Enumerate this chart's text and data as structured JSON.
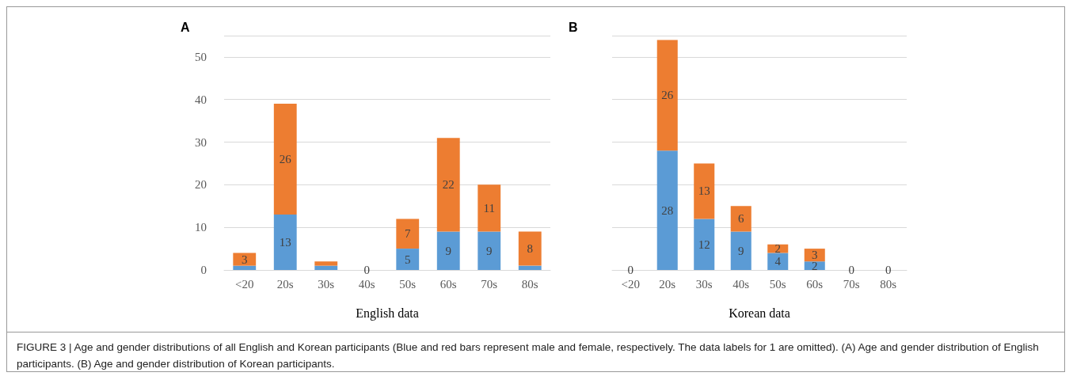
{
  "chart_data": [
    {
      "type": "bar",
      "title": "A",
      "xlabel": "English data",
      "categories": [
        "<20",
        "20s",
        "30s",
        "40s",
        "50s",
        "60s",
        "70s",
        "80s"
      ],
      "stacked": true,
      "ylim": [
        0,
        55
      ],
      "yticks": [
        0,
        10,
        20,
        30,
        40,
        50,
        {
          "value": 55,
          "label": null
        }
      ],
      "grid": "y",
      "series": [
        {
          "color": "#5b9bd5",
          "values": [
            1,
            13,
            1,
            0,
            5,
            9,
            9,
            1
          ],
          "value_labels": [
            null,
            "13",
            null,
            "0",
            "5",
            "9",
            "9",
            null
          ]
        },
        {
          "color": "#ed7d31",
          "values": [
            3,
            26,
            1,
            0,
            7,
            22,
            11,
            8
          ],
          "value_labels": [
            "3",
            "26",
            null,
            null,
            "7",
            "22",
            "11",
            "8"
          ]
        }
      ]
    },
    {
      "type": "bar",
      "title": "B",
      "xlabel": "Korean data",
      "categories": [
        "<20",
        "20s",
        "30s",
        "40s",
        "50s",
        "60s",
        "70s",
        "80s"
      ],
      "stacked": true,
      "ylim": [
        0,
        55
      ],
      "yticks": [
        0,
        10,
        20,
        30,
        40,
        50,
        {
          "value": 55,
          "label": null
        }
      ],
      "grid": "y",
      "tick_labels": "x",
      "series": [
        {
          "color": "#5b9bd5",
          "values": [
            0,
            28,
            12,
            9,
            4,
            2,
            0,
            0
          ],
          "value_labels": [
            "0",
            "28",
            "12",
            "9",
            "4",
            "2",
            "0",
            "0"
          ]
        },
        {
          "color": "#ed7d31",
          "values": [
            0,
            26,
            13,
            6,
            2,
            3,
            0,
            0
          ],
          "value_labels": [
            null,
            "26",
            "13",
            "6",
            "2",
            "3",
            null,
            null
          ]
        }
      ],
      "annotations": [
        "FIGURE 3 | Age and gender distributions of all English and Korean participants (Blue and red bars represent male and female, respectively. The data labels for 1 are omitted). (A) Age and gender distribution of English participants. (B) Age and gender distribution of Korean participants."
      ]
    }
  ]
}
